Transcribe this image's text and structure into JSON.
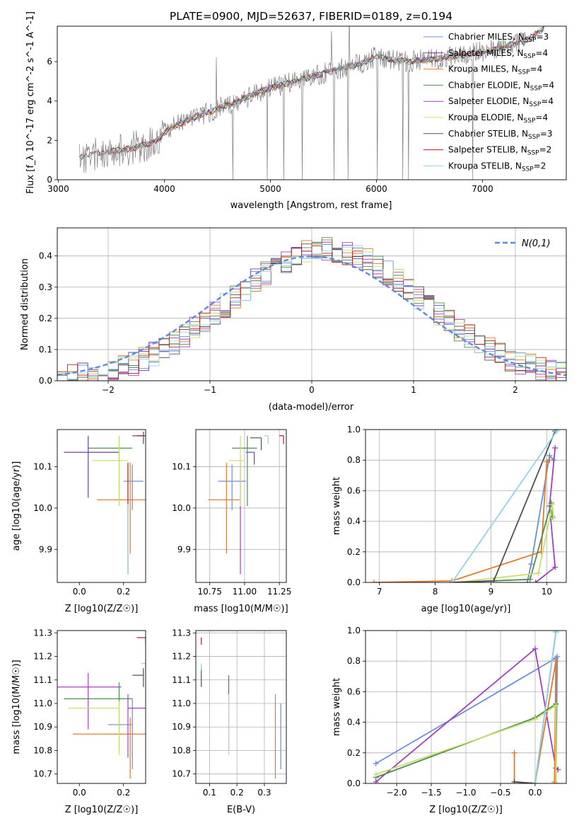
{
  "figure_title": "PLATE=0900, MJD=52637, FIBERID=0189, z=0.194",
  "colors": {
    "chabrier_miles": "#6a8ed8",
    "salpeter_miles": "#6a3fa0",
    "kroupa_miles": "#e07b2e",
    "chabrier_elodie": "#4e8f4e",
    "salpeter_elodie": "#a23fc0",
    "kroupa_elodie": "#c8e070",
    "chabrier_stelib": "#505050",
    "salpeter_stelib": "#b21a1a",
    "kroupa_stelib": "#8fd3e6",
    "data": "#7f7f7f",
    "normal": "#5b8bde",
    "grid": "#b0b0b0"
  },
  "chart_data": [
    {
      "id": "spectrum",
      "type": "line",
      "title": "PLATE=0900, MJD=52637, FIBERID=0189, z=0.194",
      "xlabel": "wavelength [Angstrom, rest frame]",
      "ylabel": "Flux [f_λ 10^-17 erg cm^-2 s^-1 A^-1]",
      "xlim": [
        2990,
        7790
      ],
      "ylim": [
        0,
        7.8
      ],
      "xticks": [
        3000,
        4000,
        5000,
        6000,
        7000
      ],
      "yticks": [
        0,
        2,
        4,
        6
      ],
      "grid": false,
      "legend_position": "right",
      "continuum": {
        "x": [
          3200,
          3350,
          3500,
          3700,
          3900,
          4050,
          4300,
          4500,
          4700,
          4900,
          5100,
          5300,
          5500,
          5700,
          5900,
          6000,
          6150,
          6300,
          6500,
          6800,
          7100,
          7300,
          7420,
          7580
        ],
        "y": [
          1.1,
          1.3,
          1.45,
          1.6,
          1.9,
          2.6,
          3.2,
          3.6,
          4.0,
          4.5,
          4.8,
          5.1,
          5.4,
          5.7,
          6.0,
          6.3,
          6.1,
          6.0,
          6.1,
          6.3,
          6.6,
          6.9,
          7.1,
          7.7
        ]
      },
      "data_noise_amplitude": 0.55,
      "data_range": [
        3200,
        7420
      ],
      "series": [
        {
          "name": "Chabrier MILES, N_SSP=3",
          "color_key": "chabrier_miles"
        },
        {
          "name": "Salpeter MILES, N_SSP=4",
          "color_key": "salpeter_miles"
        },
        {
          "name": "Kroupa MILES, N_SSP=4",
          "color_key": "kroupa_miles"
        },
        {
          "name": "Chabrier ELODIE, N_SSP=4",
          "color_key": "chabrier_elodie"
        },
        {
          "name": "Salpeter ELODIE, N_SSP=4",
          "color_key": "salpeter_elodie"
        },
        {
          "name": "Kroupa ELODIE, N_SSP=4",
          "color_key": "kroupa_elodie"
        },
        {
          "name": "Chabrier STELIB, N_SSP=3",
          "color_key": "chabrier_stelib"
        },
        {
          "name": "Salpeter STELIB, N_SSP=2",
          "color_key": "salpeter_stelib"
        },
        {
          "name": "Kroupa STELIB, N_SSP=2",
          "color_key": "kroupa_stelib"
        }
      ]
    },
    {
      "id": "residuals",
      "type": "line",
      "xlabel": "(data-model)/error",
      "ylabel": "Normed distribution",
      "xlim": [
        -2.5,
        2.5
      ],
      "ylim": [
        0,
        0.49
      ],
      "xticks": [
        -2,
        -1,
        0,
        1,
        2
      ],
      "yticks": [
        0.0,
        0.1,
        0.2,
        0.3,
        0.4
      ],
      "grid": true,
      "legend_position": "top-right",
      "legend": "N(0,1)",
      "bin_width": 0.1,
      "series": [
        {
          "color_key": "chabrier_miles",
          "seed": 1
        },
        {
          "color_key": "salpeter_miles",
          "seed": 2
        },
        {
          "color_key": "kroupa_miles",
          "seed": 3
        },
        {
          "color_key": "chabrier_elodie",
          "seed": 4
        },
        {
          "color_key": "salpeter_elodie",
          "seed": 5
        },
        {
          "color_key": "kroupa_elodie",
          "seed": 6
        },
        {
          "color_key": "chabrier_stelib",
          "seed": 7
        },
        {
          "color_key": "salpeter_stelib",
          "seed": 8
        },
        {
          "color_key": "kroupa_stelib",
          "seed": 9
        }
      ]
    },
    {
      "id": "age_vs_Z",
      "type": "scatter",
      "xlabel": "Z [log10(Z/Z☉)]",
      "ylabel": "age [log10(age/yr)]",
      "xlim": [
        -0.1,
        0.3
      ],
      "ylim": [
        9.82,
        10.19
      ],
      "xticks": [
        0.0,
        0.2
      ],
      "yticks": [
        9.9,
        10.0,
        10.1
      ],
      "grid": false,
      "points": [
        {
          "x": 0.24,
          "y": 10.065,
          "xerr": [
            0.04,
            0.05
          ],
          "yerr": [
            0.07,
            0.04
          ],
          "color_key": "chabrier_miles"
        },
        {
          "x": 0.04,
          "y": 10.135,
          "xerr": [
            0.11,
            0.14
          ],
          "yerr": [
            0.11,
            0.04
          ],
          "color_key": "salpeter_miles"
        },
        {
          "x": 0.23,
          "y": 10.02,
          "xerr": [
            0.15,
            0.07
          ],
          "yerr": [
            0.13,
            0.09
          ],
          "color_key": "kroupa_miles"
        },
        {
          "x": 0.18,
          "y": 10.145,
          "xerr": [
            0.14,
            0.06
          ],
          "yerr": [
            0.14,
            0.03
          ],
          "color_key": "chabrier_elodie"
        },
        {
          "x": 0.22,
          "y": 10.05,
          "xerr": [
            0.0,
            0.0
          ],
          "yerr": [
            0.21,
            0.06
          ],
          "color_key": "salpeter_stelib"
        },
        {
          "x": 0.18,
          "y": 10.115,
          "xerr": [
            0.12,
            0.04
          ],
          "yerr": [
            0.11,
            0.06
          ],
          "color_key": "kroupa_elodie"
        },
        {
          "x": 0.29,
          "y": 10.175,
          "xerr": [
            0.05,
            0.0
          ],
          "yerr": [
            0.02,
            0.01
          ],
          "color_key": "chabrier_stelib"
        },
        {
          "x": 0.3,
          "y": 10.175,
          "xerr": [
            0.04,
            0.0
          ],
          "yerr": [
            0.0,
            0.0
          ],
          "color_key": "salpeter_stelib"
        },
        {
          "x": 0.22,
          "y": 9.95,
          "xerr": [
            0.0,
            0.0
          ],
          "yerr": [
            0.11,
            0.06
          ],
          "color_key": "kroupa_stelib"
        }
      ]
    },
    {
      "id": "age_vs_mass",
      "type": "scatter",
      "xlabel": "mass [log10(M/M☉)]",
      "ylabel": "",
      "xlim": [
        10.65,
        11.3
      ],
      "ylim": [
        9.82,
        10.19
      ],
      "xticks": [
        10.75,
        11.0,
        11.25
      ],
      "yticks": [
        9.9,
        10.0,
        10.1
      ],
      "grid": true,
      "points": [
        {
          "x": 10.91,
          "y": 10.065,
          "xerr": [
            0.1,
            0.1
          ],
          "yerr": [
            0.07,
            0.04
          ],
          "color_key": "chabrier_miles"
        },
        {
          "x": 11.07,
          "y": 10.135,
          "xerr": [
            0.06,
            0.0
          ],
          "yerr": [
            0.03,
            0.0
          ],
          "color_key": "salpeter_miles"
        },
        {
          "x": 10.87,
          "y": 10.02,
          "xerr": [
            0.13,
            0.1
          ],
          "yerr": [
            0.13,
            0.09
          ],
          "color_key": "kroupa_miles"
        },
        {
          "x": 11.02,
          "y": 10.145,
          "xerr": [
            0.11,
            0.07
          ],
          "yerr": [
            0.14,
            0.03
          ],
          "color_key": "chabrier_elodie"
        },
        {
          "x": 10.97,
          "y": 10.05,
          "xerr": [
            0.0,
            0.0
          ],
          "yerr": [
            0.21,
            0.06
          ],
          "color_key": "salpeter_elodie"
        },
        {
          "x": 10.97,
          "y": 10.115,
          "xerr": [
            0.08,
            0.03
          ],
          "yerr": [
            0.11,
            0.06
          ],
          "color_key": "kroupa_elodie"
        },
        {
          "x": 11.12,
          "y": 10.17,
          "xerr": [
            0.08,
            0.0
          ],
          "yerr": [
            0.03,
            0.0
          ],
          "color_key": "chabrier_stelib"
        },
        {
          "x": 11.28,
          "y": 10.175,
          "xerr": [
            0.03,
            0.0
          ],
          "yerr": [
            0.02,
            0.0
          ],
          "color_key": "salpeter_stelib"
        },
        {
          "x": 11.17,
          "y": 10.175,
          "xerr": [
            0.03,
            0.0
          ],
          "yerr": [
            0.02,
            0.0
          ],
          "color_key": "kroupa_stelib"
        }
      ]
    },
    {
      "id": "mass_weight_vs_age",
      "type": "line",
      "xlabel": "age [log10(age/yr)]",
      "ylabel": "mass weight",
      "xlim": [
        6.75,
        10.35
      ],
      "ylim": [
        0,
        1.0
      ],
      "xticks": [
        7,
        8,
        9,
        10
      ],
      "yticks": [
        0.0,
        0.2,
        0.4,
        0.6,
        0.8,
        1.0
      ],
      "grid": true,
      "series": [
        {
          "color_key": "chabrier_miles",
          "x": [
            9.65,
            9.72,
            10.05,
            10.12
          ],
          "y": [
            0.0,
            0.12,
            0.83,
            0.8
          ]
        },
        {
          "color_key": "salpeter_elodie",
          "x": [
            9.8,
            10.15,
            10.05,
            10.15
          ],
          "y": [
            0.0,
            0.1,
            0.5,
            0.88
          ]
        },
        {
          "color_key": "kroupa_miles",
          "x": [
            6.9,
            8.3,
            9.9,
            10.0,
            10.05
          ],
          "y": [
            0.0,
            0.01,
            0.2,
            0.79,
            0.8
          ]
        },
        {
          "color_key": "chabrier_elodie",
          "x": [
            8.3,
            9.7,
            10.08,
            10.1
          ],
          "y": [
            0.0,
            0.02,
            0.52,
            0.43
          ]
        },
        {
          "color_key": "kroupa_elodie",
          "x": [
            8.35,
            9.85,
            10.1,
            10.12
          ],
          "y": [
            0.0,
            0.06,
            0.51,
            0.42
          ]
        },
        {
          "color_key": "chabrier_stelib",
          "x": [
            8.3,
            9.05,
            10.15,
            10.18
          ],
          "y": [
            0.0,
            0.01,
            0.99,
            1.0
          ]
        },
        {
          "color_key": "kroupa_stelib",
          "x": [
            8.3,
            10.18,
            10.19
          ],
          "y": [
            0.0,
            0.99,
            1.0
          ]
        }
      ]
    },
    {
      "id": "mass_weight_vs_Z",
      "type": "line",
      "xlabel": "Z [log10(Z/Z☉)]",
      "ylabel": "mass weight",
      "xlim": [
        -2.45,
        0.45
      ],
      "ylim": [
        0,
        1.0
      ],
      "xticks": [
        -2.0,
        -1.5,
        -1.0,
        -0.5,
        0.0
      ],
      "yticks": [
        0.0,
        0.2,
        0.4,
        0.6,
        0.8,
        1.0
      ],
      "grid": true,
      "series": [
        {
          "color_key": "chabrier_miles",
          "x": [
            -2.3,
            0.3,
            0.3,
            0.32
          ],
          "y": [
            0.13,
            0.82,
            0.0,
            0.83
          ]
        },
        {
          "color_key": "salpeter_elodie",
          "x": [
            -2.3,
            0.0,
            0.3,
            0.33
          ],
          "y": [
            0.01,
            0.88,
            0.1,
            0.09
          ]
        },
        {
          "color_key": "kroupa_miles",
          "x": [
            -0.3,
            -0.3,
            0.0,
            0.3,
            0.28
          ],
          "y": [
            0.2,
            0.01,
            0.0,
            0.8,
            0.01
          ]
        },
        {
          "color_key": "chabrier_elodie",
          "x": [
            -2.3,
            0.0,
            0.3,
            0.3
          ],
          "y": [
            0.04,
            0.43,
            0.52,
            0.0
          ]
        },
        {
          "color_key": "kroupa_elodie",
          "x": [
            -2.3,
            0.0,
            0.3,
            0.3
          ],
          "y": [
            0.06,
            0.42,
            0.51,
            0.0
          ]
        },
        {
          "color_key": "chabrier_stelib",
          "x": [
            -0.3,
            0.0,
            0.3,
            0.3
          ],
          "y": [
            0.01,
            0.0,
            0.99,
            1.0
          ]
        },
        {
          "color_key": "kroupa_stelib",
          "x": [
            0.0,
            0.3,
            0.31
          ],
          "y": [
            0.0,
            0.99,
            1.0
          ]
        }
      ]
    },
    {
      "id": "mass_vs_Z",
      "type": "scatter",
      "xlabel": "Z [log10(Z/Z☉)]",
      "ylabel": "mass [log10(M/M☉)]",
      "xlim": [
        -0.1,
        0.3
      ],
      "ylim": [
        10.66,
        11.31
      ],
      "xticks": [
        0.0,
        0.2
      ],
      "yticks": [
        10.7,
        10.8,
        10.9,
        11.0,
        11.1,
        11.2,
        11.3
      ],
      "grid": false,
      "points": [
        {
          "x": 0.24,
          "y": 10.91,
          "xerr": [
            0.11,
            0.0
          ],
          "yerr": [
            0.19,
            0.11
          ],
          "color_key": "chabrier_miles"
        },
        {
          "x": 0.04,
          "y": 11.07,
          "xerr": [
            0.15,
            0.15
          ],
          "yerr": [
            0.18,
            0.06
          ],
          "color_key": "salpeter_elodie"
        },
        {
          "x": 0.23,
          "y": 10.87,
          "xerr": [
            0.26,
            0.07
          ],
          "yerr": [
            0.19,
            0.07
          ],
          "color_key": "kroupa_miles"
        },
        {
          "x": 0.18,
          "y": 11.02,
          "xerr": [
            0.25,
            0.06
          ],
          "yerr": [
            0.22,
            0.07
          ],
          "color_key": "chabrier_elodie"
        },
        {
          "x": 0.22,
          "y": 10.98,
          "xerr": [
            0.0,
            0.08
          ],
          "yerr": [
            0.21,
            0.06
          ],
          "color_key": "salpeter_elodie"
        },
        {
          "x": 0.18,
          "y": 10.98,
          "xerr": [
            0.23,
            0.0
          ],
          "yerr": [
            0.2,
            0.03
          ],
          "color_key": "kroupa_elodie"
        },
        {
          "x": 0.29,
          "y": 11.12,
          "xerr": [
            0.05,
            0.0
          ],
          "yerr": [
            0.05,
            0.03
          ],
          "color_key": "chabrier_stelib"
        },
        {
          "x": 0.3,
          "y": 11.28,
          "xerr": [
            0.04,
            0.0
          ],
          "yerr": [
            0.03,
            0.0
          ],
          "color_key": "salpeter_stelib"
        },
        {
          "x": 0.3,
          "y": 11.17,
          "xerr": [
            0.02,
            0.0
          ],
          "yerr": [
            0.03,
            0.0
          ],
          "color_key": "kroupa_stelib"
        }
      ]
    },
    {
      "id": "mass_vs_EBV",
      "type": "scatter",
      "xlabel": "E(B-V)",
      "ylabel": "",
      "xlim": [
        0.05,
        0.38
      ],
      "ylim": [
        10.66,
        11.31
      ],
      "xticks": [
        0.1,
        0.2,
        0.3
      ],
      "yticks": [
        10.7,
        10.8,
        10.9,
        11.0,
        11.1,
        11.2,
        11.3
      ],
      "grid": true,
      "points": [
        {
          "x": 0.36,
          "y": 10.91,
          "xerr": [
            0.0,
            0.0
          ],
          "yerr": [
            0.19,
            0.09
          ],
          "color_key": "chabrier_miles"
        },
        {
          "x": 0.34,
          "y": 10.87,
          "xerr": [
            0.0,
            0.0
          ],
          "yerr": [
            0.19,
            0.17
          ],
          "color_key": "kroupa_miles"
        },
        {
          "x": 0.17,
          "y": 11.02,
          "xerr": [
            0.0,
            0.0
          ],
          "yerr": [
            0.22,
            0.1
          ],
          "color_key": "salpeter_elodie"
        },
        {
          "x": 0.17,
          "y": 10.98,
          "xerr": [
            0.0,
            0.0
          ],
          "yerr": [
            0.2,
            0.06
          ],
          "color_key": "kroupa_elodie"
        },
        {
          "x": 0.07,
          "y": 11.12,
          "xerr": [
            0.0,
            0.0
          ],
          "yerr": [
            0.05,
            0.03
          ],
          "color_key": "chabrier_stelib"
        },
        {
          "x": 0.07,
          "y": 11.28,
          "xerr": [
            0.0,
            0.0
          ],
          "yerr": [
            0.03,
            0.0
          ],
          "color_key": "salpeter_stelib"
        },
        {
          "x": 0.07,
          "y": 11.17,
          "xerr": [
            0.0,
            0.0
          ],
          "yerr": [
            0.03,
            0.0
          ],
          "color_key": "kroupa_stelib"
        }
      ]
    }
  ]
}
